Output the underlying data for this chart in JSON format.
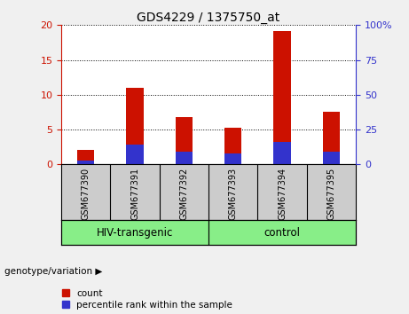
{
  "title": "GDS4229 / 1375750_at",
  "samples": [
    "GSM677390",
    "GSM677391",
    "GSM677392",
    "GSM677393",
    "GSM677394",
    "GSM677395"
  ],
  "count_values": [
    2.1,
    11.0,
    6.8,
    5.3,
    19.2,
    7.5
  ],
  "percentile_values": [
    0.5,
    2.8,
    1.8,
    1.6,
    3.2,
    1.8
  ],
  "bar_color_red": "#cc1100",
  "bar_color_blue": "#3333cc",
  "left_ylim": [
    0,
    20
  ],
  "right_ylim": [
    0,
    100
  ],
  "left_yticks": [
    0,
    5,
    10,
    15,
    20
  ],
  "right_yticks": [
    0,
    25,
    50,
    75,
    100
  ],
  "right_yticklabels": [
    "0",
    "25",
    "50",
    "75",
    "100%"
  ],
  "left_ycolor": "#cc1100",
  "right_ycolor": "#3333cc",
  "groups": [
    {
      "label": "HIV-transgenic",
      "indices": [
        0,
        1,
        2
      ],
      "color": "#88ee88"
    },
    {
      "label": "control",
      "indices": [
        3,
        4,
        5
      ],
      "color": "#88ee88"
    }
  ],
  "group_label_prefix": "genotype/variation",
  "legend_count_label": "count",
  "legend_percentile_label": "percentile rank within the sample",
  "plot_bg_color": "#ffffff",
  "xtick_bg_color": "#cccccc",
  "group_bg_color": "#bbbbbb",
  "bar_width": 0.35
}
